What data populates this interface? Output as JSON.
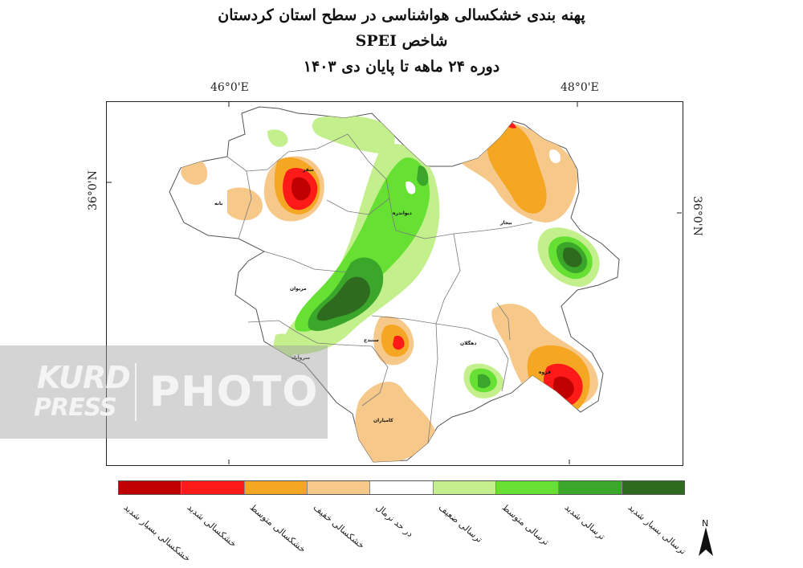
{
  "title": {
    "line1": "پهنه بندی خشکسالی هواشناسی در سطح استان کردستان",
    "line2": "شاخص SPEI",
    "line3": "دوره ۲۴ ماهه تا پایان دی ۱۴۰۳"
  },
  "axes": {
    "lon_left": "46°0'E",
    "lon_right": "48°0'E",
    "lat_left": "36°0'N",
    "lat_right": "36°0'N"
  },
  "legend": [
    {
      "label": "خشکسالی بسیار شدید",
      "color": "#c00000"
    },
    {
      "label": "خشکسالی شدید",
      "color": "#ff1a1a"
    },
    {
      "label": "خشکسالی متوسط",
      "color": "#f5a623"
    },
    {
      "label": "خشکسالی خفیف",
      "color": "#f6c98a"
    },
    {
      "label": "در حد نرمال",
      "color": "#ffffff"
    },
    {
      "label": "ترسالی ضعیف",
      "color": "#c3f08c"
    },
    {
      "label": "ترسالی متوسط",
      "color": "#66e033"
    },
    {
      "label": "ترسالی شدید",
      "color": "#3aa62a"
    },
    {
      "label": "ترسالی بسیار شدید",
      "color": "#2e6b1f"
    }
  ],
  "cities": {
    "baneh": "بانه",
    "saqqez": "سقز",
    "divandarreh": "دیواندره",
    "bijar": "بیجار",
    "marivan": "مریوان",
    "sanandaj": "سنندج",
    "dehgolan": "دهگلان",
    "qorveh": "قروه",
    "kamyaran": "کامیاران",
    "sarvabad": "سروآباد"
  },
  "watermark": {
    "brand_top": "KURD",
    "brand_bottom": "PRESS",
    "word": "PHOTO"
  },
  "north_label": "N"
}
